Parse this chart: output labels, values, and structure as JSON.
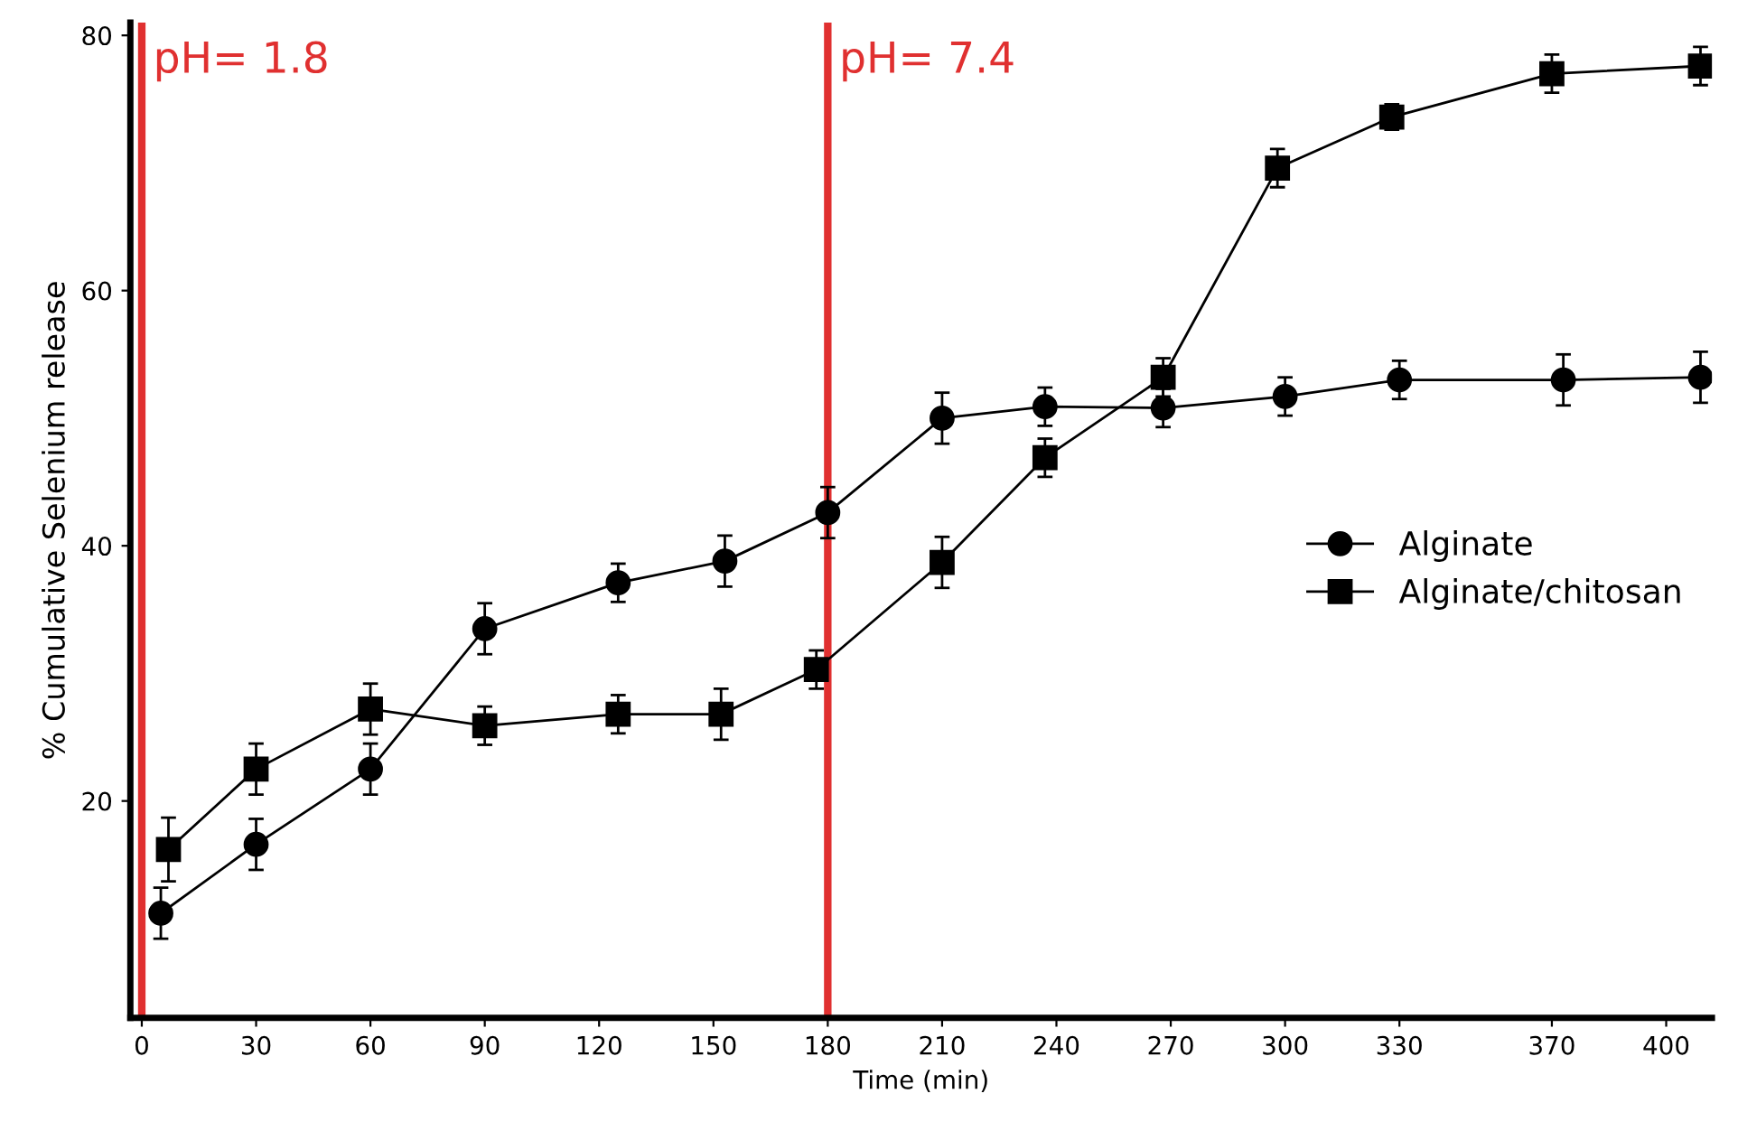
{
  "chart_data": {
    "type": "line",
    "xlabel": "Time (min)",
    "ylabel": "% Cumulative Selenium release",
    "xlim": [
      -3,
      412
    ],
    "ylim": [
      3,
      81
    ],
    "xticks": [
      0,
      30,
      60,
      90,
      120,
      150,
      180,
      210,
      240,
      270,
      300,
      330,
      370,
      400
    ],
    "yticks": [
      20,
      40,
      60,
      80
    ],
    "series": [
      {
        "name": "Alginate",
        "color": "#000000",
        "marker": "circle",
        "x": [
          5,
          30,
          60,
          90,
          125,
          153,
          180,
          210,
          237,
          268,
          300,
          330,
          373,
          409
        ],
        "values": [
          11.2,
          16.6,
          22.5,
          33.5,
          37.1,
          38.8,
          42.6,
          50.0,
          50.9,
          50.8,
          51.7,
          53.0,
          53.0,
          53.2
        ],
        "errors": [
          2,
          2,
          2,
          2,
          1.5,
          2,
          2,
          2,
          1.5,
          1.5,
          1.5,
          1.5,
          2,
          2
        ]
      },
      {
        "name": "Alginate/chitosan",
        "color": "#000000",
        "marker": "square",
        "x": [
          7,
          30,
          60,
          90,
          125,
          152,
          177,
          210,
          237,
          268,
          298,
          328,
          370,
          409
        ],
        "values": [
          16.2,
          22.5,
          27.2,
          25.9,
          26.8,
          26.8,
          30.3,
          38.7,
          46.9,
          53.2,
          69.6,
          73.6,
          77.0,
          77.6
        ],
        "errors": [
          2.5,
          2,
          2,
          1.5,
          1.5,
          2,
          1.5,
          2,
          1.5,
          1.5,
          1.5,
          1,
          1.5,
          1.5
        ]
      }
    ],
    "ref_lines": [
      {
        "axis": "x",
        "value": 0,
        "color": "#e03030"
      },
      {
        "axis": "x",
        "value": 180,
        "color": "#e03030"
      }
    ],
    "annotations": [
      {
        "text": "pH= 1.8",
        "x": 0,
        "y": 78
      },
      {
        "text": "pH= 7.4",
        "x": 180,
        "y": 78
      }
    ],
    "legend": "center right",
    "grid": false,
    "line_style": "solid"
  }
}
